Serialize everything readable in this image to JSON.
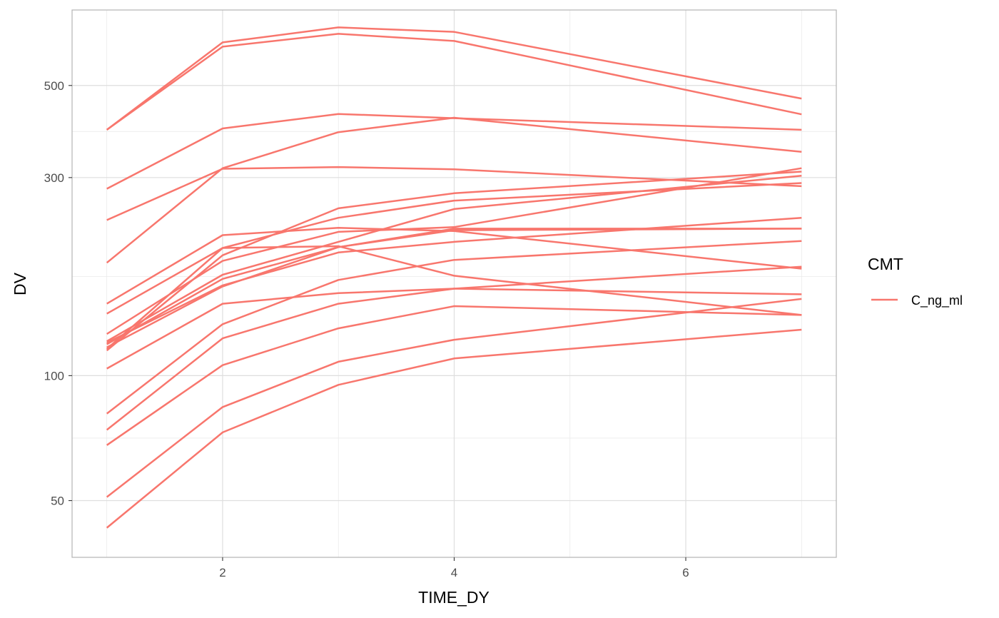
{
  "chart_data": {
    "type": "line",
    "xlabel": "TIME_DY",
    "ylabel": "DV",
    "x_ticks": [
      2,
      4,
      6
    ],
    "y_ticks": [
      50,
      100,
      300,
      500
    ],
    "y_scale": "log",
    "xlim": [
      0.7,
      7.3
    ],
    "ylim": [
      36.5,
      760
    ],
    "grid": true,
    "color": "#F8766D",
    "legend": {
      "title": "CMT",
      "position": "right",
      "entries": [
        {
          "label": "C_ng_ml",
          "color": "#F8766D"
        }
      ]
    },
    "x": [
      1,
      2,
      3,
      4,
      7
    ],
    "series": [
      {
        "values": [
          391,
          635,
          690,
          673,
          465
        ]
      },
      {
        "values": [
          391,
          620,
          666,
          640,
          426
        ]
      },
      {
        "values": [
          282,
          394,
          427,
          417,
          391
        ]
      },
      {
        "values": [
          237,
          315,
          318,
          314,
          286
        ]
      },
      {
        "values": [
          187,
          316,
          386,
          418,
          346
        ]
      },
      {
        "values": [
          149,
          218,
          227,
          223,
          181
        ]
      },
      {
        "values": [
          141,
          203,
          205,
          174,
          140
        ]
      },
      {
        "values": [
          126,
          189,
          222,
          228,
          316
        ]
      },
      {
        "values": [
          121,
          175,
          210,
          252,
          303
        ]
      },
      {
        "values": [
          120,
          165,
          198,
          210,
          240
        ]
      },
      {
        "values": [
          119,
          171,
          204,
          226,
          226
        ]
      },
      {
        "values": [
          117,
          164,
          204,
          224,
          226
        ]
      },
      {
        "values": [
          116,
          203,
          240,
          264,
          291
        ]
      },
      {
        "values": [
          115,
          195,
          253,
          275,
          310
        ]
      },
      {
        "values": [
          104,
          149,
          158,
          162,
          157
        ]
      },
      {
        "values": [
          81,
          133,
          170,
          190,
          211
        ]
      },
      {
        "values": [
          74,
          123,
          149,
          162,
          183
        ]
      },
      {
        "values": [
          68,
          106,
          130,
          147,
          140
        ]
      },
      {
        "values": [
          51,
          84,
          108,
          122,
          153
        ]
      },
      {
        "values": [
          43,
          73,
          95,
          110,
          129
        ]
      }
    ]
  }
}
